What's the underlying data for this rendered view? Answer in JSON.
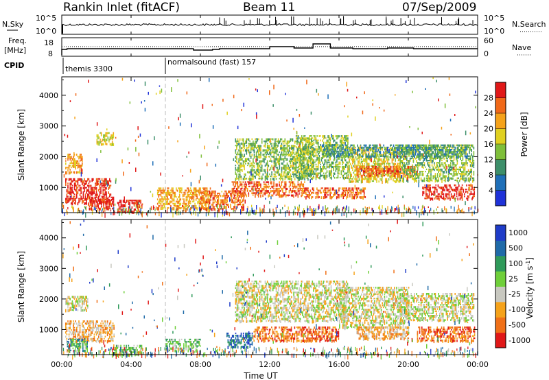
{
  "header": {
    "title_left": "Rankin Inlet (fitACF)",
    "title_center": "Beam 11",
    "title_right": "07/Sep/2009"
  },
  "strip_nsky": {
    "left_label": "N.Sky",
    "right_label": "N.Search",
    "left_ticks": [
      "10^5",
      "10^0"
    ],
    "right_ticks": [
      "10^5",
      "10^0"
    ]
  },
  "strip_freq": {
    "left_label_1": "Freq.",
    "left_label_2": "[MHz]",
    "left_ticks": [
      "18",
      "8"
    ],
    "right_label": "Nave",
    "right_ticks": [
      "60",
      "0"
    ]
  },
  "cpid": {
    "label": "CPID",
    "segments": [
      {
        "name": "themis 3300",
        "start_hour": 0
      },
      {
        "name": "normalsound (fast) 157",
        "start_hour": 6
      }
    ]
  },
  "chart_data": [
    {
      "type": "heatmap",
      "panel": "power",
      "ylabel": "Slant Range [km]",
      "y_ticks": [
        1000,
        2000,
        3000,
        4000
      ],
      "ylim": [
        180,
        4600
      ],
      "xlim": [
        0,
        24
      ],
      "colorbar": {
        "label": "Power [dB]",
        "levels": [
          "4",
          "8",
          "12",
          "16",
          "20",
          "24",
          "28"
        ],
        "colors": [
          "#1f32d8",
          "#1f6fb8",
          "#3d8f6a",
          "#7fbf3a",
          "#e0d020",
          "#f5a21a",
          "#f06818",
          "#e01818"
        ]
      },
      "echo_regions": [
        {
          "t0": 0.2,
          "t1": 2.8,
          "r0": 500,
          "r1": 1300,
          "level": 7
        },
        {
          "t0": 0.2,
          "t1": 1.2,
          "r0": 1500,
          "r1": 2100,
          "level": 5
        },
        {
          "t0": 2.0,
          "t1": 3.0,
          "r0": 2400,
          "r1": 2800,
          "level": 4
        },
        {
          "t0": 1.5,
          "t1": 3.0,
          "r0": 300,
          "r1": 700,
          "level": 7
        },
        {
          "t0": 3.2,
          "t1": 4.6,
          "r0": 200,
          "r1": 600,
          "level": 7
        },
        {
          "t0": 5.5,
          "t1": 8.6,
          "r0": 300,
          "r1": 1000,
          "level": 5
        },
        {
          "t0": 8.0,
          "t1": 10.5,
          "r0": 300,
          "r1": 900,
          "level": 6
        },
        {
          "t0": 9.8,
          "t1": 14.0,
          "r0": 700,
          "r1": 1200,
          "level": 6
        },
        {
          "t0": 10.0,
          "t1": 14.5,
          "r0": 1300,
          "r1": 2600,
          "level": 3
        },
        {
          "t0": 13.5,
          "t1": 16.5,
          "r0": 1300,
          "r1": 2700,
          "level": 3
        },
        {
          "t0": 14.0,
          "t1": 17.5,
          "r0": 700,
          "r1": 1000,
          "level": 6
        },
        {
          "t0": 16.5,
          "t1": 19.5,
          "r0": 1200,
          "r1": 2300,
          "level": 4
        },
        {
          "t0": 17.0,
          "t1": 20.5,
          "r0": 1400,
          "r1": 1700,
          "level": 6
        },
        {
          "t0": 19.5,
          "t1": 23.8,
          "r0": 1200,
          "r1": 2400,
          "level": 3
        },
        {
          "t0": 20.8,
          "t1": 23.8,
          "r0": 600,
          "r1": 1100,
          "level": 7
        },
        {
          "t0": 15.0,
          "t1": 23.5,
          "r0": 2000,
          "r1": 2400,
          "level": 2
        }
      ]
    },
    {
      "type": "heatmap",
      "panel": "velocity",
      "ylabel": "Slant Range [km]",
      "y_ticks": [
        1000,
        2000,
        3000,
        4000
      ],
      "ylim": [
        180,
        4600
      ],
      "xlim": [
        0,
        24
      ],
      "colorbar": {
        "label": "Velocity [m s^-1]",
        "levels": [
          "1000",
          "500",
          "100",
          "25",
          "-25",
          "-100",
          "-500",
          "-1000"
        ],
        "colors": [
          "#1f3cc8",
          "#1f6aa8",
          "#2f9a5a",
          "#6fcf3a",
          "#c8c8c0",
          "#f5a21a",
          "#f07018",
          "#e01818"
        ]
      },
      "echo_regions": [
        {
          "t0": 0.2,
          "t1": 1.5,
          "r0": 1600,
          "r1": 2100,
          "level": 4
        },
        {
          "t0": 0.2,
          "t1": 3.0,
          "r0": 600,
          "r1": 1300,
          "level": 5
        },
        {
          "t0": 0.3,
          "t1": 1.5,
          "r0": 300,
          "r1": 700,
          "level": 2
        },
        {
          "t0": 3.0,
          "t1": 4.6,
          "r0": 200,
          "r1": 500,
          "level": 3
        },
        {
          "t0": 6.0,
          "t1": 8.0,
          "r0": 300,
          "r1": 700,
          "level": 3
        },
        {
          "t0": 9.5,
          "t1": 11.0,
          "r0": 400,
          "r1": 900,
          "level": 1
        },
        {
          "t0": 10.0,
          "t1": 16.5,
          "r0": 1300,
          "r1": 2600,
          "level": 4
        },
        {
          "t0": 11.0,
          "t1": 16.0,
          "r0": 600,
          "r1": 1100,
          "level": 6
        },
        {
          "t0": 16.0,
          "t1": 20.0,
          "r0": 1100,
          "r1": 2400,
          "level": 4
        },
        {
          "t0": 19.5,
          "t1": 23.8,
          "r0": 1300,
          "r1": 2200,
          "level": 4
        },
        {
          "t0": 20.5,
          "t1": 23.8,
          "r0": 600,
          "r1": 1100,
          "level": 6
        },
        {
          "t0": 17.0,
          "t1": 20.0,
          "r0": 700,
          "r1": 1100,
          "level": 5
        }
      ]
    }
  ],
  "x_axis": {
    "label": "Time UT",
    "ticks": [
      "00:00",
      "04:00",
      "08:00",
      "12:00",
      "16:00",
      "20:00",
      "00:00"
    ]
  }
}
